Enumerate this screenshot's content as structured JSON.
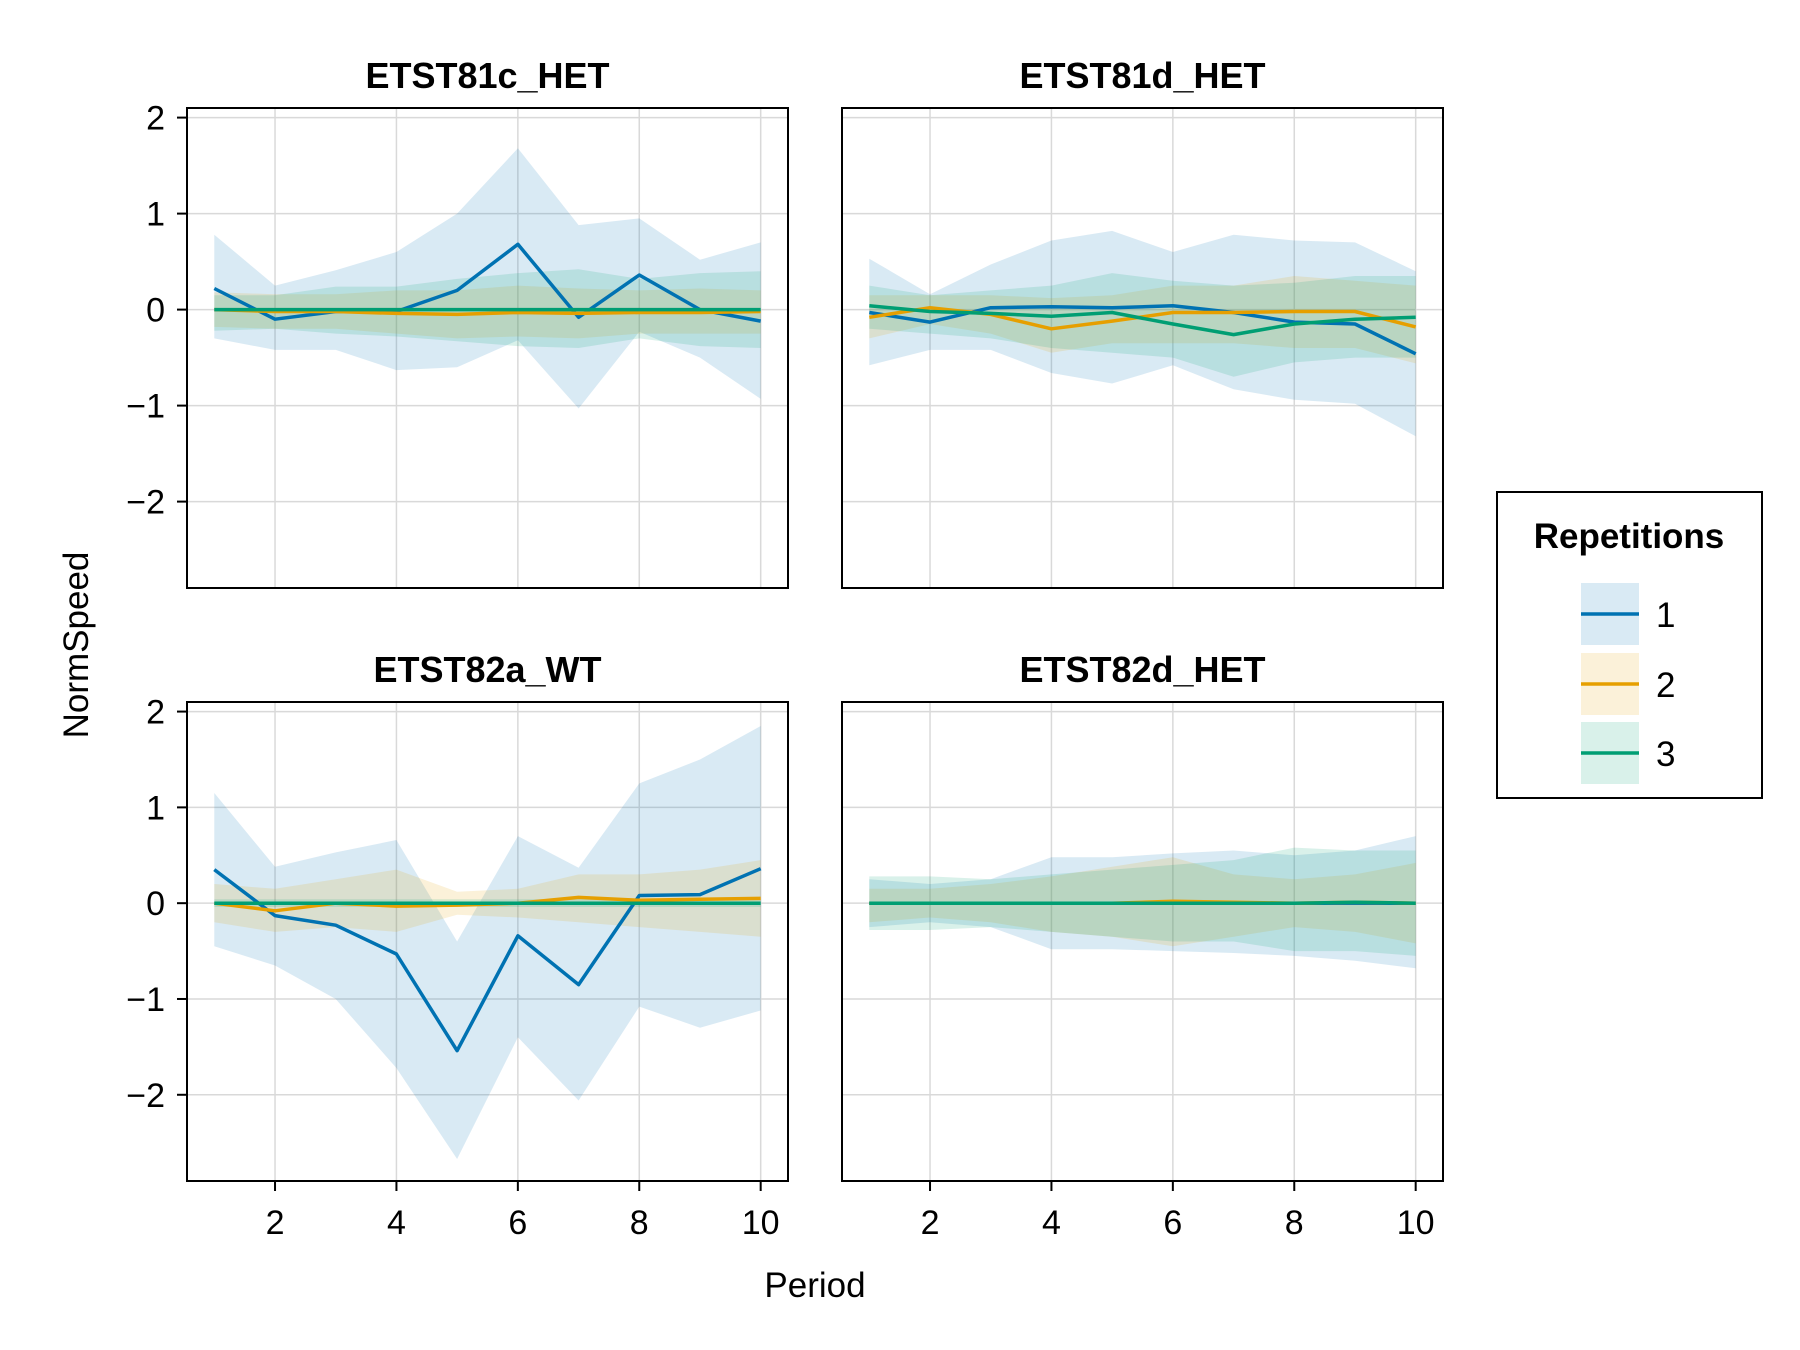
{
  "chart_data": {
    "type": "line",
    "xlabel": "Period",
    "ylabel": "NormSpeed",
    "xlim": [
      0.55,
      10.45
    ],
    "ylim": [
      -2.9,
      2.1
    ],
    "xticks": [
      2,
      4,
      6,
      8,
      10
    ],
    "xtick_labels": [
      "2",
      "4",
      "6",
      "8",
      "10"
    ],
    "yticks": [
      2,
      1,
      0,
      -1,
      -2
    ],
    "ytick_labels": [
      "2",
      "1",
      "0",
      "−1",
      "−2"
    ],
    "grid": true,
    "legend": {
      "title": "Repetitions",
      "placement": "right",
      "entries": [
        "1",
        "2",
        "3"
      ]
    },
    "series_colors": [
      "#0072B2",
      "#E69F00",
      "#009E73"
    ],
    "x": [
      1,
      2,
      3,
      4,
      5,
      6,
      7,
      8,
      9,
      10
    ],
    "panels": [
      {
        "title": "ETST81c_HET",
        "series": [
          {
            "name": "1",
            "values": [
              0.22,
              -0.1,
              -0.02,
              -0.02,
              0.2,
              0.68,
              -0.08,
              0.36,
              0.0,
              -0.12
            ],
            "lower": [
              -0.3,
              -0.42,
              -0.42,
              -0.63,
              -0.6,
              -0.32,
              -1.03,
              -0.23,
              -0.5,
              -0.93
            ],
            "upper": [
              0.78,
              0.25,
              0.41,
              0.6,
              1.0,
              1.68,
              0.88,
              0.95,
              0.52,
              0.7
            ]
          },
          {
            "name": "2",
            "values": [
              0.0,
              -0.02,
              -0.02,
              -0.04,
              -0.05,
              -0.03,
              -0.04,
              -0.03,
              -0.03,
              -0.02
            ],
            "lower": [
              -0.18,
              -0.2,
              -0.2,
              -0.25,
              -0.3,
              -0.28,
              -0.3,
              -0.25,
              -0.25,
              -0.25
            ],
            "upper": [
              0.18,
              0.16,
              0.16,
              0.2,
              0.2,
              0.25,
              0.22,
              0.2,
              0.22,
              0.2
            ]
          },
          {
            "name": "3",
            "values": [
              0.0,
              0.0,
              0.0,
              0.0,
              0.0,
              0.0,
              0.0,
              0.0,
              0.0,
              0.0
            ],
            "lower": [
              -0.22,
              -0.2,
              -0.25,
              -0.28,
              -0.33,
              -0.38,
              -0.4,
              -0.3,
              -0.38,
              -0.4
            ],
            "upper": [
              0.15,
              0.15,
              0.24,
              0.24,
              0.32,
              0.38,
              0.42,
              0.32,
              0.38,
              0.4
            ]
          }
        ]
      },
      {
        "title": "ETST81d_HET",
        "series": [
          {
            "name": "1",
            "values": [
              -0.03,
              -0.13,
              0.02,
              0.03,
              0.02,
              0.04,
              -0.03,
              -0.13,
              -0.15,
              -0.46
            ],
            "lower": [
              -0.58,
              -0.42,
              -0.42,
              -0.66,
              -0.77,
              -0.58,
              -0.83,
              -0.94,
              -0.98,
              -1.32
            ],
            "upper": [
              0.53,
              0.16,
              0.47,
              0.72,
              0.82,
              0.6,
              0.78,
              0.72,
              0.7,
              0.4
            ]
          },
          {
            "name": "2",
            "values": [
              -0.08,
              0.02,
              -0.05,
              -0.2,
              -0.12,
              -0.03,
              -0.03,
              -0.02,
              -0.02,
              -0.18
            ],
            "lower": [
              -0.3,
              -0.15,
              -0.25,
              -0.45,
              -0.35,
              -0.35,
              -0.35,
              -0.4,
              -0.4,
              -0.56
            ],
            "upper": [
              0.15,
              0.15,
              0.15,
              0.12,
              0.15,
              0.25,
              0.25,
              0.35,
              0.3,
              0.25
            ]
          },
          {
            "name": "3",
            "values": [
              0.04,
              -0.02,
              -0.04,
              -0.07,
              -0.03,
              -0.15,
              -0.26,
              -0.15,
              -0.1,
              -0.08
            ],
            "lower": [
              -0.2,
              -0.25,
              -0.3,
              -0.4,
              -0.45,
              -0.5,
              -0.7,
              -0.55,
              -0.5,
              -0.5
            ],
            "upper": [
              0.25,
              0.15,
              0.2,
              0.25,
              0.38,
              0.3,
              0.25,
              0.28,
              0.35,
              0.35
            ]
          }
        ]
      },
      {
        "title": "ETST82a_WT",
        "series": [
          {
            "name": "1",
            "values": [
              0.35,
              -0.13,
              -0.23,
              -0.53,
              -1.54,
              -0.34,
              -0.85,
              0.08,
              0.09,
              0.36
            ],
            "lower": [
              -0.45,
              -0.65,
              -1.0,
              -1.72,
              -2.67,
              -1.4,
              -2.06,
              -1.08,
              -1.3,
              -1.12
            ],
            "upper": [
              1.15,
              0.38,
              0.53,
              0.66,
              -0.4,
              0.7,
              0.37,
              1.25,
              1.5,
              1.85
            ]
          },
          {
            "name": "2",
            "values": [
              0.0,
              -0.08,
              0.0,
              -0.03,
              -0.02,
              0.0,
              0.06,
              0.03,
              0.04,
              0.05
            ],
            "lower": [
              -0.2,
              -0.3,
              -0.25,
              -0.3,
              -0.12,
              -0.15,
              -0.2,
              -0.25,
              -0.3,
              -0.35
            ],
            "upper": [
              0.2,
              0.15,
              0.25,
              0.35,
              0.12,
              0.15,
              0.3,
              0.3,
              0.35,
              0.45
            ]
          },
          {
            "name": "3",
            "values": [
              0.0,
              0.0,
              0.0,
              0.0,
              0.0,
              0.0,
              0.0,
              0.0,
              0.0,
              0.0
            ],
            "lower": [
              -0.04,
              -0.04,
              -0.04,
              -0.04,
              -0.04,
              -0.04,
              -0.04,
              -0.04,
              -0.04,
              -0.04
            ],
            "upper": [
              0.04,
              0.04,
              0.04,
              0.04,
              0.04,
              0.04,
              0.04,
              0.04,
              0.04,
              0.04
            ]
          }
        ]
      },
      {
        "title": "ETST82d_HET",
        "series": [
          {
            "name": "1",
            "values": [
              0.0,
              0.0,
              0.0,
              0.0,
              0.0,
              0.0,
              0.0,
              0.0,
              0.0,
              0.0
            ],
            "lower": [
              -0.25,
              -0.2,
              -0.25,
              -0.48,
              -0.48,
              -0.5,
              -0.52,
              -0.55,
              -0.6,
              -0.68
            ],
            "upper": [
              0.25,
              0.2,
              0.25,
              0.48,
              0.48,
              0.52,
              0.55,
              0.5,
              0.55,
              0.7
            ]
          },
          {
            "name": "2",
            "values": [
              0.0,
              0.0,
              0.0,
              0.0,
              0.0,
              0.02,
              0.01,
              0.0,
              0.01,
              0.0
            ],
            "lower": [
              -0.2,
              -0.15,
              -0.2,
              -0.3,
              -0.35,
              -0.45,
              -0.35,
              -0.25,
              -0.3,
              -0.42
            ],
            "upper": [
              0.15,
              0.15,
              0.2,
              0.28,
              0.38,
              0.48,
              0.3,
              0.25,
              0.3,
              0.42
            ]
          },
          {
            "name": "3",
            "values": [
              0.0,
              0.0,
              0.0,
              0.0,
              0.0,
              0.0,
              0.0,
              0.0,
              0.01,
              0.0
            ],
            "lower": [
              -0.28,
              -0.28,
              -0.25,
              -0.3,
              -0.35,
              -0.4,
              -0.4,
              -0.5,
              -0.5,
              -0.55
            ],
            "upper": [
              0.28,
              0.28,
              0.25,
              0.3,
              0.35,
              0.4,
              0.45,
              0.58,
              0.55,
              0.55
            ]
          }
        ]
      }
    ]
  }
}
